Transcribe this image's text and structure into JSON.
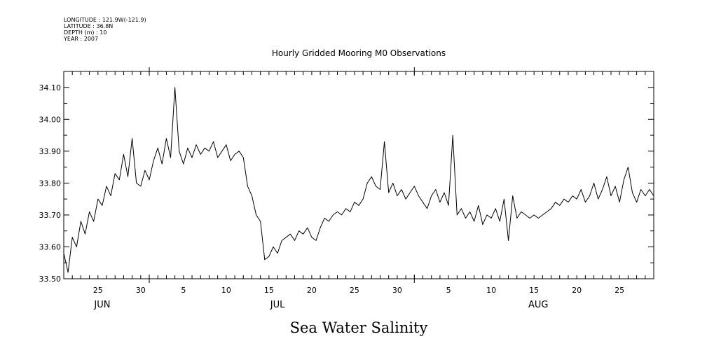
{
  "meta": {
    "longitude": "LONGITUDE : 121.9W(-121.9)",
    "latitude": "LATITUDE : 36.8N",
    "depth": "DEPTH (m) : 10",
    "year": "YEAR : 2007"
  },
  "chart_data": {
    "type": "line",
    "title": "Hourly Gridded Mooring M0 Observations",
    "xlabel": "Sea Water Salinity",
    "ylabel": "",
    "xlim_days": [
      0,
      69
    ],
    "ylim": [
      33.5,
      34.15
    ],
    "y_ticks": [
      "33.50",
      "33.60",
      "33.70",
      "33.80",
      "33.90",
      "34.00",
      "34.10"
    ],
    "x_tick_labels": [
      {
        "label": "25",
        "day": 4
      },
      {
        "label": "30",
        "day": 9
      },
      {
        "label": "5",
        "day": 14
      },
      {
        "label": "10",
        "day": 19
      },
      {
        "label": "15",
        "day": 24
      },
      {
        "label": "20",
        "day": 29
      },
      {
        "label": "25",
        "day": 34
      },
      {
        "label": "30",
        "day": 39
      },
      {
        "label": "5",
        "day": 45
      },
      {
        "label": "10",
        "day": 50
      },
      {
        "label": "15",
        "day": 55
      },
      {
        "label": "20",
        "day": 60
      },
      {
        "label": "25",
        "day": 65
      }
    ],
    "month_labels": [
      {
        "label": "JUN",
        "day": 4.5
      },
      {
        "label": "JUL",
        "day": 25
      },
      {
        "label": "AUG",
        "day": 55.5
      }
    ],
    "month_boundaries_days": [
      10,
      41
    ],
    "series": [
      {
        "name": "Sea Water Salinity",
        "x_days": [
          0,
          0.5,
          1,
          1.5,
          2,
          2.5,
          3,
          3.5,
          4,
          4.5,
          5,
          5.5,
          6,
          6.5,
          7,
          7.5,
          8,
          8.5,
          9,
          9.5,
          10,
          10.5,
          11,
          11.5,
          12,
          12.5,
          13,
          13.5,
          14,
          14.5,
          15,
          15.5,
          16,
          16.5,
          17,
          17.5,
          18,
          18.5,
          19,
          19.5,
          20,
          20.5,
          21,
          21.5,
          22,
          22.5,
          23,
          23.5,
          24,
          24.5,
          25,
          25.5,
          26,
          26.5,
          27,
          27.5,
          28,
          28.5,
          29,
          29.5,
          30,
          30.5,
          31,
          31.5,
          32,
          32.5,
          33,
          33.5,
          34,
          34.5,
          35,
          35.5,
          36,
          36.5,
          37,
          37.5,
          38,
          38.5,
          39,
          39.5,
          40,
          40.5,
          41,
          41.5,
          42,
          42.5,
          43,
          43.5,
          44,
          44.5,
          45,
          45.5,
          46,
          46.5,
          47,
          47.5,
          48,
          48.5,
          49,
          49.5,
          50,
          50.5,
          51,
          51.5,
          52,
          52.5,
          53,
          53.5,
          54,
          54.5,
          55,
          55.5,
          56,
          56.5,
          57,
          57.5,
          58,
          58.5,
          59,
          59.5,
          60,
          60.5,
          61,
          61.5,
          62,
          62.5,
          63,
          63.5,
          64,
          64.5,
          65,
          65.5,
          66,
          66.5,
          67,
          67.5,
          68,
          68.5,
          69
        ],
        "values": [
          33.58,
          33.52,
          33.63,
          33.6,
          33.68,
          33.64,
          33.71,
          33.68,
          33.75,
          33.73,
          33.79,
          33.76,
          33.83,
          33.81,
          33.89,
          33.82,
          33.94,
          33.8,
          33.79,
          33.84,
          33.81,
          33.87,
          33.91,
          33.86,
          33.94,
          33.88,
          34.1,
          33.9,
          33.86,
          33.91,
          33.88,
          33.92,
          33.89,
          33.91,
          33.9,
          33.93,
          33.88,
          33.9,
          33.92,
          33.87,
          33.89,
          33.9,
          33.88,
          33.79,
          33.76,
          33.7,
          33.68,
          33.56,
          33.57,
          33.6,
          33.58,
          33.62,
          33.63,
          33.64,
          33.62,
          33.65,
          33.64,
          33.66,
          33.63,
          33.62,
          33.66,
          33.69,
          33.68,
          33.7,
          33.71,
          33.7,
          33.72,
          33.71,
          33.74,
          33.73,
          33.75,
          33.8,
          33.82,
          33.79,
          33.78,
          33.93,
          33.77,
          33.8,
          33.76,
          33.78,
          33.75,
          33.77,
          33.79,
          33.76,
          33.74,
          33.72,
          33.76,
          33.78,
          33.74,
          33.77,
          33.73,
          33.95,
          33.7,
          33.72,
          33.69,
          33.71,
          33.68,
          33.73,
          33.67,
          33.7,
          33.69,
          33.72,
          33.68,
          33.75,
          33.62,
          33.76,
          33.69,
          33.71,
          33.7,
          33.69,
          33.7,
          33.69,
          33.7,
          33.71,
          33.72,
          33.74,
          33.73,
          33.75,
          33.74,
          33.76,
          33.75,
          33.78,
          33.74,
          33.76,
          33.8,
          33.75,
          33.78,
          33.82,
          33.76,
          33.79,
          33.74,
          33.81,
          33.85,
          33.77,
          33.74,
          33.78,
          33.76,
          33.78,
          33.76
        ]
      }
    ]
  }
}
